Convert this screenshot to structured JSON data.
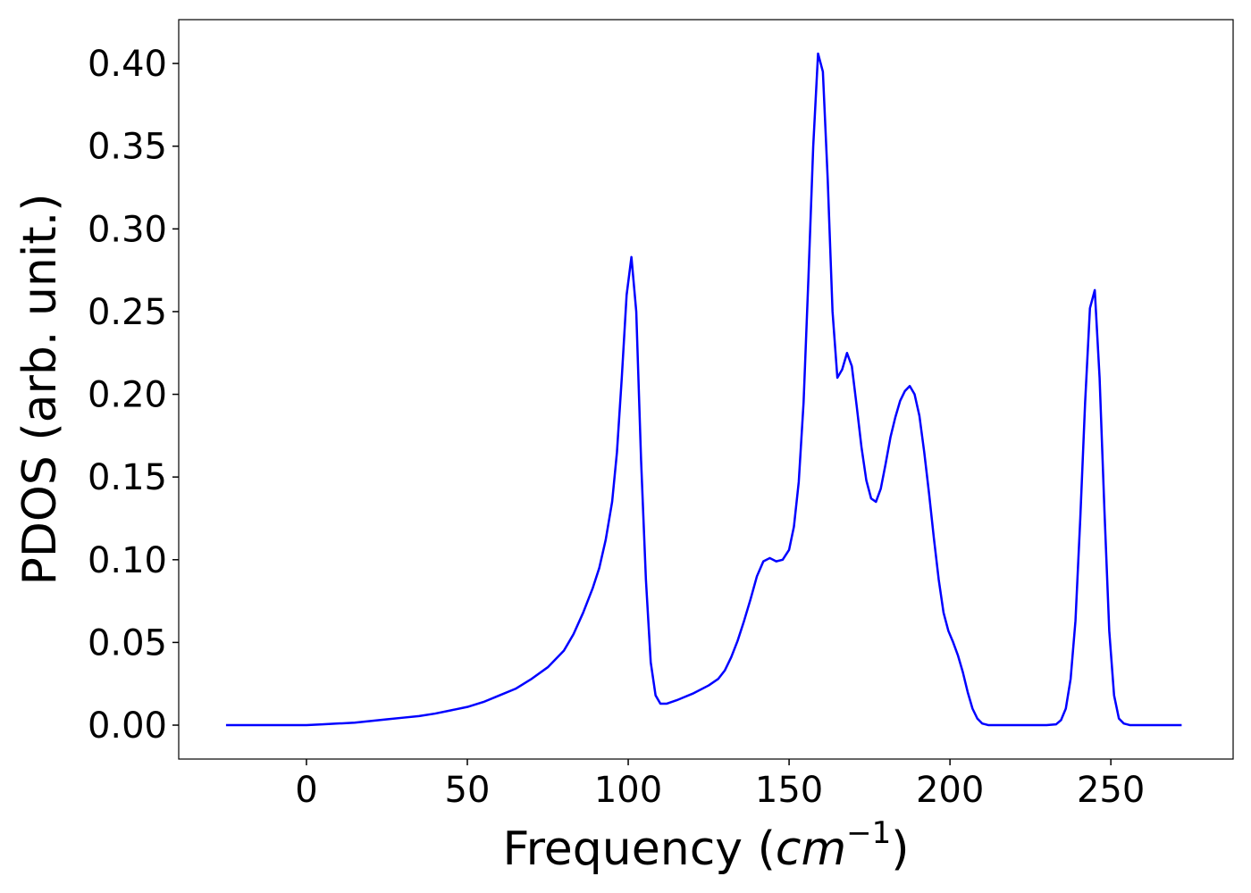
{
  "chart_data": {
    "type": "line",
    "xlabel": {
      "text": "Frequency (",
      "unit": "cm",
      "exponent": "−1",
      "close": ")"
    },
    "ylabel": "PDOS (arb. unit.)",
    "xlim": [
      -39.7,
      288
    ],
    "ylim": [
      -0.0205,
      0.4265
    ],
    "xticks": [
      0,
      50,
      100,
      150,
      200,
      250
    ],
    "yticks": [
      {
        "value": 0,
        "label": "0.00"
      },
      0.05,
      {
        "value": 0.1,
        "label": "0.10"
      },
      0.15,
      {
        "value": 0.2,
        "label": "0.20"
      },
      0.25,
      {
        "value": 0.3,
        "label": "0.30"
      },
      0.35,
      {
        "value": 0.4,
        "label": "0.40"
      }
    ],
    "grid": false,
    "series": [
      {
        "color": "#0000ff",
        "x": [
          -25,
          0,
          5,
          10,
          15,
          20,
          25,
          30,
          35,
          40,
          45,
          50,
          55,
          60,
          65,
          70,
          75,
          80,
          83,
          86,
          89,
          91,
          93,
          95,
          96.5,
          98,
          99.5,
          101,
          102.5,
          104,
          105.5,
          107,
          108.5,
          110,
          112,
          115,
          120,
          125,
          128,
          130,
          132,
          134,
          136,
          138,
          140,
          142,
          144,
          146,
          148,
          150,
          151.5,
          153,
          154.5,
          156,
          157.5,
          159,
          160.5,
          162,
          163.5,
          165,
          166.5,
          168,
          169.5,
          171,
          172.5,
          174,
          175.5,
          177,
          178.5,
          180,
          181.5,
          183,
          184.5,
          186,
          187.5,
          189,
          190.5,
          192,
          193.5,
          195,
          196.5,
          198,
          199.5,
          201,
          202.5,
          204,
          205.5,
          207,
          208.5,
          210,
          212,
          220,
          230,
          233,
          234.5,
          236,
          237.5,
          239,
          240.5,
          242,
          243.5,
          245,
          246.5,
          248,
          249.5,
          251,
          252.5,
          254,
          256,
          272
        ],
        "values": [
          0,
          0,
          0.0005,
          0.001,
          0.0015,
          0.0025,
          0.0035,
          0.0045,
          0.0055,
          0.007,
          0.009,
          0.011,
          0.014,
          0.018,
          0.022,
          0.028,
          0.035,
          0.045,
          0.055,
          0.068,
          0.083,
          0.095,
          0.112,
          0.135,
          0.165,
          0.21,
          0.26,
          0.283,
          0.25,
          0.16,
          0.088,
          0.038,
          0.018,
          0.013,
          0.013,
          0.015,
          0.019,
          0.024,
          0.028,
          0.033,
          0.041,
          0.051,
          0.063,
          0.076,
          0.09,
          0.099,
          0.101,
          0.099,
          0.1,
          0.106,
          0.12,
          0.147,
          0.195,
          0.27,
          0.35,
          0.406,
          0.395,
          0.33,
          0.25,
          0.21,
          0.215,
          0.225,
          0.217,
          0.193,
          0.168,
          0.148,
          0.137,
          0.135,
          0.143,
          0.158,
          0.174,
          0.186,
          0.196,
          0.202,
          0.205,
          0.2,
          0.187,
          0.165,
          0.14,
          0.113,
          0.088,
          0.068,
          0.057,
          0.05,
          0.042,
          0.032,
          0.02,
          0.01,
          0.004,
          0.001,
          0,
          0,
          0,
          0.0005,
          0.003,
          0.01,
          0.028,
          0.063,
          0.125,
          0.195,
          0.252,
          0.263,
          0.21,
          0.13,
          0.057,
          0.018,
          0.004,
          0.001,
          0,
          0
        ]
      }
    ]
  }
}
